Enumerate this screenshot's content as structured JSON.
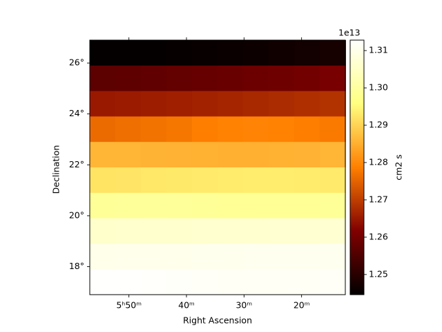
{
  "chart_data": {
    "type": "heatmap",
    "xlabel": "Right Ascension",
    "ylabel": "Declination",
    "colormap": "afmhot",
    "x": [
      54.6,
      50.2,
      45.7,
      41.3,
      36.8,
      32.4,
      28.0,
      23.5,
      19.1,
      14.6
    ],
    "y": [
      26.4,
      25.4,
      24.4,
      23.4,
      22.4,
      21.4,
      20.4,
      19.4,
      18.4,
      17.4
    ],
    "values": [
      [
        1.2452,
        1.2452,
        1.2453,
        1.2455,
        1.2457,
        1.246,
        1.2463,
        1.2467,
        1.2472,
        1.2476
      ],
      [
        1.257,
        1.2572,
        1.2575,
        1.2578,
        1.2582,
        1.2586,
        1.259,
        1.2595,
        1.26,
        1.2606
      ],
      [
        1.265,
        1.2652,
        1.2655,
        1.2658,
        1.2662,
        1.2666,
        1.267,
        1.2675,
        1.268,
        1.2685
      ],
      [
        1.276,
        1.2765,
        1.277,
        1.2775,
        1.2785,
        1.279,
        1.2792,
        1.279,
        1.2785,
        1.278
      ],
      [
        1.286,
        1.2858,
        1.2856,
        1.2855,
        1.2853,
        1.2852,
        1.2852,
        1.2853,
        1.2855,
        1.2858
      ],
      [
        1.292,
        1.2922,
        1.2925,
        1.2928,
        1.293,
        1.2932,
        1.2933,
        1.2933,
        1.2932,
        1.293
      ],
      [
        1.299,
        1.2992,
        1.2993,
        1.2992,
        1.299,
        1.2988,
        1.2986,
        1.2986,
        1.2988,
        1.299
      ],
      [
        1.306,
        1.3062,
        1.3063,
        1.3063,
        1.3064,
        1.3064,
        1.3065,
        1.3066,
        1.3067,
        1.3068
      ],
      [
        1.31,
        1.3101,
        1.3102,
        1.3103,
        1.3104,
        1.3105,
        1.3106,
        1.3106,
        1.3107,
        1.3108
      ],
      [
        1.3126,
        1.3126,
        1.3122,
        1.312,
        1.3118,
        1.3116,
        1.3115,
        1.3114,
        1.3116,
        1.3118
      ]
    ],
    "xlim": [
      56.8,
      12.4
    ],
    "xticks": [
      {
        "value": 50,
        "label": "5ʰ50ᵐ"
      },
      {
        "value": 40,
        "label": "40ᵐ"
      },
      {
        "value": 30,
        "label": "30ᵐ"
      },
      {
        "value": 20,
        "label": "20ᵐ"
      }
    ],
    "ylim": [
      16.9,
      26.9
    ],
    "yticks": [
      {
        "value": 18,
        "label": "18°"
      },
      {
        "value": 20,
        "label": "20°"
      },
      {
        "value": 22,
        "label": "22°"
      },
      {
        "value": 24,
        "label": "24°"
      },
      {
        "value": 26,
        "label": "26°"
      }
    ],
    "colorbar": {
      "label": "cm2 s",
      "offset": "1e13",
      "lim": [
        1.2446,
        1.3128
      ],
      "ticks": [
        1.25,
        1.26,
        1.27,
        1.28,
        1.29,
        {
          "value": 1.3,
          "label": "1.30"
        },
        1.31
      ]
    }
  }
}
